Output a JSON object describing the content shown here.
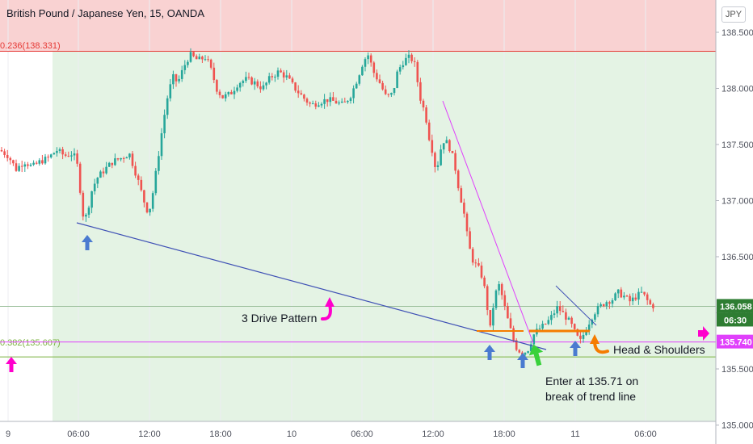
{
  "header": {
    "symbol_title": "British Pound / Japanese Yen, 15, OANDA",
    "currency": "JPY"
  },
  "colors": {
    "up": "#26a69a",
    "down": "#ef5350",
    "resistance_zone": "#f9d2d2",
    "support_zone": "#e4f3e4",
    "fib_236": "#e53935",
    "fib_382": "#7cb342",
    "price_line": "#2e7d32",
    "trend_blue": "#3f51b5",
    "trend_magenta": "#e040fb",
    "neckline": "#f57c00",
    "arrow_blue": "#4a7bd0",
    "arrow_green": "#39d13b",
    "arrow_orange": "#f57c00",
    "arrow_magenta": "#ff00cc"
  },
  "chart_data": {
    "type": "candlestick",
    "y_axis": {
      "range": [
        134.97,
        138.7
      ],
      "ticks": [
        "138.500",
        "138.000",
        "137.500",
        "137.000",
        "136.500",
        "136.000",
        "135.500",
        "135.000"
      ],
      "tick_values": [
        138.5,
        138.0,
        137.5,
        137.0,
        136.5,
        136.0,
        135.5,
        135.0
      ]
    },
    "x_axis": {
      "ticks": [
        "9",
        "06:00",
        "12:00",
        "18:00",
        "10",
        "06:00",
        "12:00",
        "18:00",
        "11",
        "06:00"
      ]
    },
    "price_labels": {
      "last_price": "136.058",
      "countdown": "06:30",
      "alert_level": "135.740"
    },
    "levels": {
      "last_price": 136.058,
      "alert_level": 135.74,
      "fib_236": 138.331,
      "fib_382": 135.607
    },
    "fib_labels": {
      "fib_236": "0.236(138.331)",
      "fib_382": "0.382(135.607)"
    },
    "annotations": {
      "three_drive": "3 Drive Pattern",
      "head_shoulders": "Head & Shoulders",
      "enter_line1": "Enter at 135.71 on",
      "enter_line2": "break of trend line"
    },
    "anchors": [
      [
        0,
        137.45
      ],
      [
        10,
        137.4
      ],
      [
        20,
        137.28
      ],
      [
        30,
        137.35
      ],
      [
        40,
        137.3
      ],
      [
        50,
        137.35
      ],
      [
        60,
        137.38
      ],
      [
        70,
        137.45
      ],
      [
        80,
        137.4
      ],
      [
        90,
        137.42
      ],
      [
        95,
        137.35
      ],
      [
        100,
        137.05
      ],
      [
        104,
        136.8
      ],
      [
        108,
        136.9
      ],
      [
        114,
        137.1
      ],
      [
        120,
        137.2
      ],
      [
        130,
        137.28
      ],
      [
        140,
        137.35
      ],
      [
        150,
        137.38
      ],
      [
        160,
        137.42
      ],
      [
        170,
        137.2
      ],
      [
        178,
        137.0
      ],
      [
        184,
        136.88
      ],
      [
        190,
        137.1
      ],
      [
        196,
        137.4
      ],
      [
        202,
        137.7
      ],
      [
        208,
        137.95
      ],
      [
        214,
        138.1
      ],
      [
        220,
        138.05
      ],
      [
        228,
        138.2
      ],
      [
        235,
        138.3
      ],
      [
        245,
        138.25
      ],
      [
        255,
        138.28
      ],
      [
        262,
        138.15
      ],
      [
        268,
        138.0
      ],
      [
        275,
        137.92
      ],
      [
        285,
        137.95
      ],
      [
        295,
        138.05
      ],
      [
        305,
        138.08
      ],
      [
        315,
        138.05
      ],
      [
        325,
        138.0
      ],
      [
        335,
        138.1
      ],
      [
        345,
        138.15
      ],
      [
        355,
        138.1
      ],
      [
        365,
        138.0
      ],
      [
        375,
        137.92
      ],
      [
        385,
        137.85
      ],
      [
        395,
        137.88
      ],
      [
        405,
        137.9
      ],
      [
        415,
        137.88
      ],
      [
        425,
        137.85
      ],
      [
        435,
        137.95
      ],
      [
        443,
        138.1
      ],
      [
        450,
        138.25
      ],
      [
        456,
        138.3
      ],
      [
        462,
        138.15
      ],
      [
        470,
        138.05
      ],
      [
        478,
        137.92
      ],
      [
        486,
        137.95
      ],
      [
        492,
        138.15
      ],
      [
        500,
        138.25
      ],
      [
        508,
        138.28
      ],
      [
        514,
        138.2
      ],
      [
        518,
        138.0
      ],
      [
        522,
        137.85
      ],
      [
        526,
        137.8
      ],
      [
        530,
        137.6
      ],
      [
        535,
        137.45
      ],
      [
        540,
        137.25
      ],
      [
        545,
        137.45
      ],
      [
        550,
        137.55
      ],
      [
        556,
        137.48
      ],
      [
        562,
        137.35
      ],
      [
        568,
        137.1
      ],
      [
        574,
        136.9
      ],
      [
        580,
        136.6
      ],
      [
        586,
        136.45
      ],
      [
        592,
        136.4
      ],
      [
        598,
        136.3
      ],
      [
        603,
        136.05
      ],
      [
        607,
        135.85
      ],
      [
        612,
        136.15
      ],
      [
        618,
        136.25
      ],
      [
        623,
        136.1
      ],
      [
        628,
        135.95
      ],
      [
        633,
        135.82
      ],
      [
        638,
        135.7
      ],
      [
        643,
        135.66
      ],
      [
        648,
        135.64
      ],
      [
        654,
        135.68
      ],
      [
        660,
        135.8
      ],
      [
        666,
        135.85
      ],
      [
        672,
        135.88
      ],
      [
        678,
        135.92
      ],
      [
        684,
        135.98
      ],
      [
        690,
        136.05
      ],
      [
        696,
        136.0
      ],
      [
        702,
        135.95
      ],
      [
        708,
        135.88
      ],
      [
        713,
        135.8
      ],
      [
        718,
        135.74
      ],
      [
        723,
        135.82
      ],
      [
        728,
        135.9
      ],
      [
        735,
        136.0
      ],
      [
        742,
        136.05
      ],
      [
        750,
        136.1
      ],
      [
        758,
        136.12
      ],
      [
        765,
        136.18
      ],
      [
        772,
        136.15
      ],
      [
        780,
        136.1
      ],
      [
        788,
        136.15
      ],
      [
        795,
        136.18
      ],
      [
        800,
        136.12
      ],
      [
        805,
        136.07
      ],
      [
        810,
        136.06
      ]
    ]
  }
}
